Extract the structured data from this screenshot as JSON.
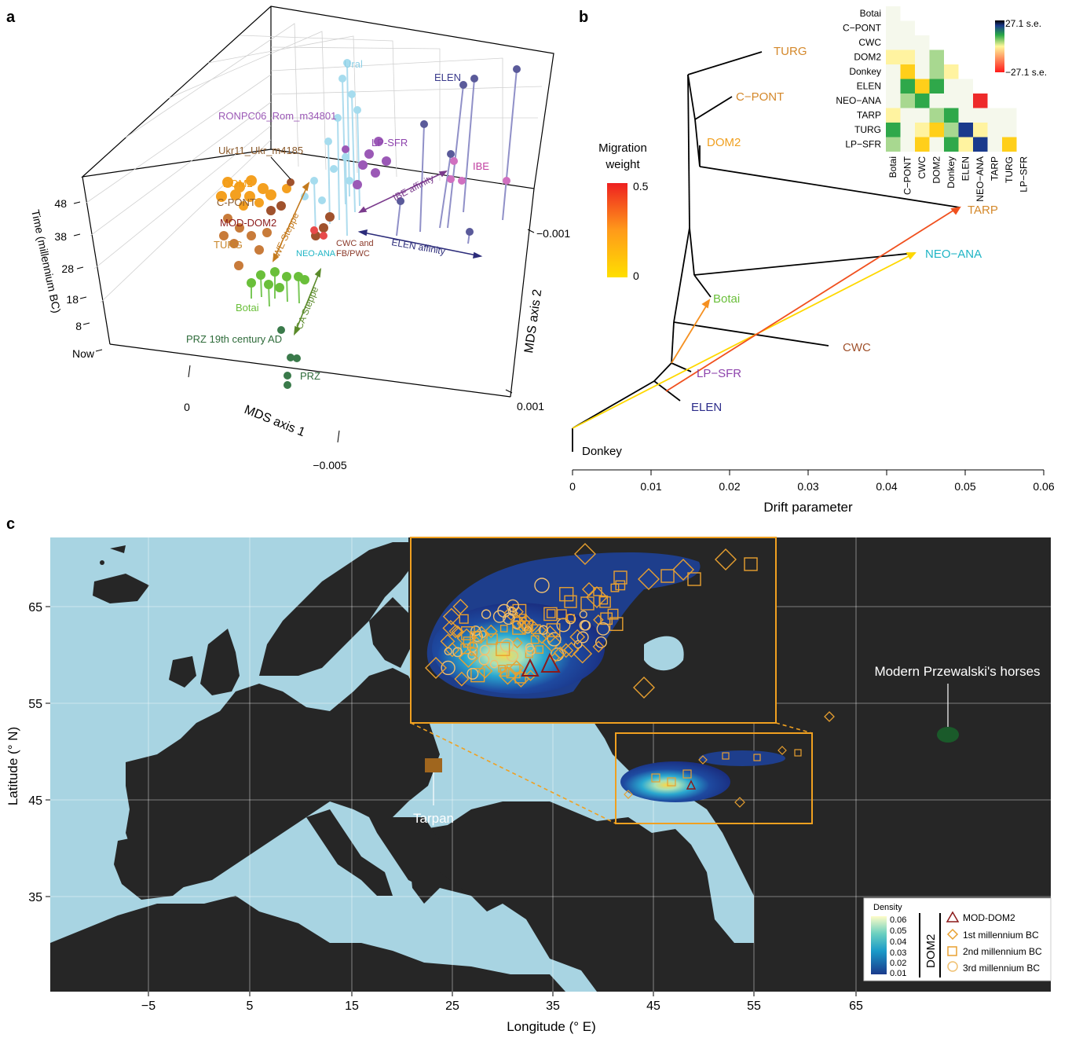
{
  "panels": {
    "a": "a",
    "b": "b",
    "c": "c"
  },
  "panel_a": {
    "time_axis_label": "Time (millennium BC)",
    "time_ticks": [
      "48",
      "38",
      "28",
      "18",
      "8",
      "Now"
    ],
    "mds1_label": "MDS axis 1",
    "mds1_ticks": [
      "0",
      "−0.005"
    ],
    "mds2_label": "MDS axis 2",
    "mds2_ticks": [
      "−0.001",
      "0.001"
    ],
    "group_labels": [
      {
        "text": "Ural",
        "color": "#8fd0e6"
      },
      {
        "text": "ELEN",
        "color": "#3a3a8c"
      },
      {
        "text": "RONPC06_Rom_m34801",
        "color": "#9b59b6"
      },
      {
        "text": "LP-SFR",
        "color": "#8e44ad"
      },
      {
        "text": "Ukr11_Ukr_m4185",
        "color": "#8b5a2b"
      },
      {
        "text": "DOM2",
        "color": "#f39c12"
      },
      {
        "text": "C-PONT",
        "color": "#8b5a2b"
      },
      {
        "text": "IBE",
        "color": "#c040a0"
      },
      {
        "text": "MOD-DOM2",
        "color": "#8b1a1a"
      },
      {
        "text": "TURG",
        "color": "#c8862a"
      },
      {
        "text": "NEO-ANA",
        "color": "#1fb5c5"
      },
      {
        "text": "CWC and",
        "color": "#8b3a2a"
      },
      {
        "text": "FB/PWC",
        "color": "#8b3a2a"
      },
      {
        "text": "Botai",
        "color": "#6abf3a"
      },
      {
        "text": "PRZ 19th century AD",
        "color": "#2e6b3a"
      },
      {
        "text": "PRZ",
        "color": "#2e6b3a"
      }
    ],
    "arrows": [
      {
        "text": "WE Steppe",
        "color": "#c47a1e"
      },
      {
        "text": "CA Steppe",
        "color": "#5a8a2a"
      },
      {
        "text": "IBE affinity",
        "color": "#7a3a8c"
      },
      {
        "text": "ELEN affinity",
        "color": "#2c2c7a"
      }
    ]
  },
  "panel_b": {
    "xlabel": "Drift parameter",
    "xticks": [
      "0",
      "0.01",
      "0.02",
      "0.03",
      "0.04",
      "0.05",
      "0.06"
    ],
    "migration_title_1": "Migration",
    "migration_title_2": "weight",
    "migration_max": "0.5",
    "migration_min": "0",
    "leaves": [
      {
        "text": "TURG",
        "color": "#d4882a"
      },
      {
        "text": "C−PONT",
        "color": "#d4882a"
      },
      {
        "text": "DOM2",
        "color": "#f0a020"
      },
      {
        "text": "TARP",
        "color": "#d4882a"
      },
      {
        "text": "NEO−ANA",
        "color": "#1fb5c5"
      },
      {
        "text": "Botai",
        "color": "#6abf3a"
      },
      {
        "text": "CWC",
        "color": "#a0522d"
      },
      {
        "text": "LP−SFR",
        "color": "#8e44ad"
      },
      {
        "text": "ELEN",
        "color": "#2c2c8a"
      },
      {
        "text": "Donkey",
        "color": "#000000"
      }
    ],
    "heatmap_rows": [
      "Botai",
      "C−PONT",
      "CWC",
      "DOM2",
      "Donkey",
      "ELEN",
      "NEO−ANA",
      "TARP",
      "TURG",
      "LP−SFR"
    ],
    "heatmap_cols": [
      "Botai",
      "C−PONT",
      "CWC",
      "DOM2",
      "Donkey",
      "ELEN",
      "NEO−ANA",
      "TARP",
      "TURG",
      "LP−SFR"
    ],
    "heatmap_scale_max": "27.1 s.e.",
    "heatmap_scale_min": "−27.1 s.e."
  },
  "panel_c": {
    "xlabel": "Longitude (° E)",
    "ylabel": "Latitude (° N)",
    "xticks": [
      "−5",
      "5",
      "15",
      "25",
      "35",
      "45",
      "55",
      "65"
    ],
    "yticks": [
      "65",
      "55",
      "45",
      "35"
    ],
    "tarpan_label": "Tarpan",
    "prz_label": "Modern Przewalski's horses",
    "legend": {
      "density_title": "Density",
      "density_values": [
        "0.06",
        "0.05",
        "0.04",
        "0.03",
        "0.02",
        "0.01"
      ],
      "group": "DOM2",
      "items": [
        "MOD-DOM2",
        "1st millennium BC",
        "2nd millennium BC",
        "3rd millennium BC"
      ]
    }
  },
  "chart_data": [
    {
      "type": "scatter",
      "title": "",
      "xlabel": "MDS axis 1",
      "ylabel": "MDS axis 2",
      "zlabel": "Time (millennium BC)",
      "time_ticks": [
        48,
        38,
        28,
        18,
        8,
        0
      ],
      "mds1_ticks": [
        0,
        -0.005
      ],
      "mds2_ticks": [
        -0.001,
        0.001
      ]
    },
    {
      "type": "tree",
      "xlabel": "Drift parameter",
      "xlim": [
        0,
        0.06
      ],
      "leaves": [
        "TURG",
        "C−PONT",
        "DOM2",
        "TARP",
        "NEO−ANA",
        "Botai",
        "CWC",
        "LP−SFR",
        "ELEN",
        "Donkey"
      ],
      "migration_weight_range": [
        0,
        0.5
      ]
    },
    {
      "type": "heatmap",
      "rows": [
        "Botai",
        "C−PONT",
        "CWC",
        "DOM2",
        "Donkey",
        "ELEN",
        "NEO−ANA",
        "TARP",
        "TURG",
        "LP−SFR"
      ],
      "cols": [
        "Botai",
        "C−PONT",
        "CWC",
        "DOM2",
        "Donkey",
        "ELEN",
        "NEO−ANA",
        "TARP",
        "TURG",
        "LP−SFR"
      ],
      "scale": [
        -27.1,
        27.1
      ],
      "colors": [
        "#ff1a1a",
        "#fffb9a",
        "#28a845",
        "#1a3a8c",
        "#000000"
      ]
    },
    {
      "type": "map",
      "xlabel": "Longitude (° E)",
      "ylabel": "Latitude (° N)",
      "xticks": [
        -5,
        5,
        15,
        25,
        35,
        45,
        55,
        65
      ],
      "yticks": [
        65,
        55,
        45,
        35
      ],
      "density_range": [
        0.01,
        0.06
      ],
      "markers": [
        {
          "name": "Tarpan",
          "lon": 23,
          "lat": 48.5,
          "shape": "square",
          "color": "#a0661e"
        },
        {
          "name": "Modern Przewalski's horses",
          "lon": 85,
          "lat": 47,
          "shape": "ellipse",
          "color": "#1a5a2a"
        }
      ]
    }
  ]
}
